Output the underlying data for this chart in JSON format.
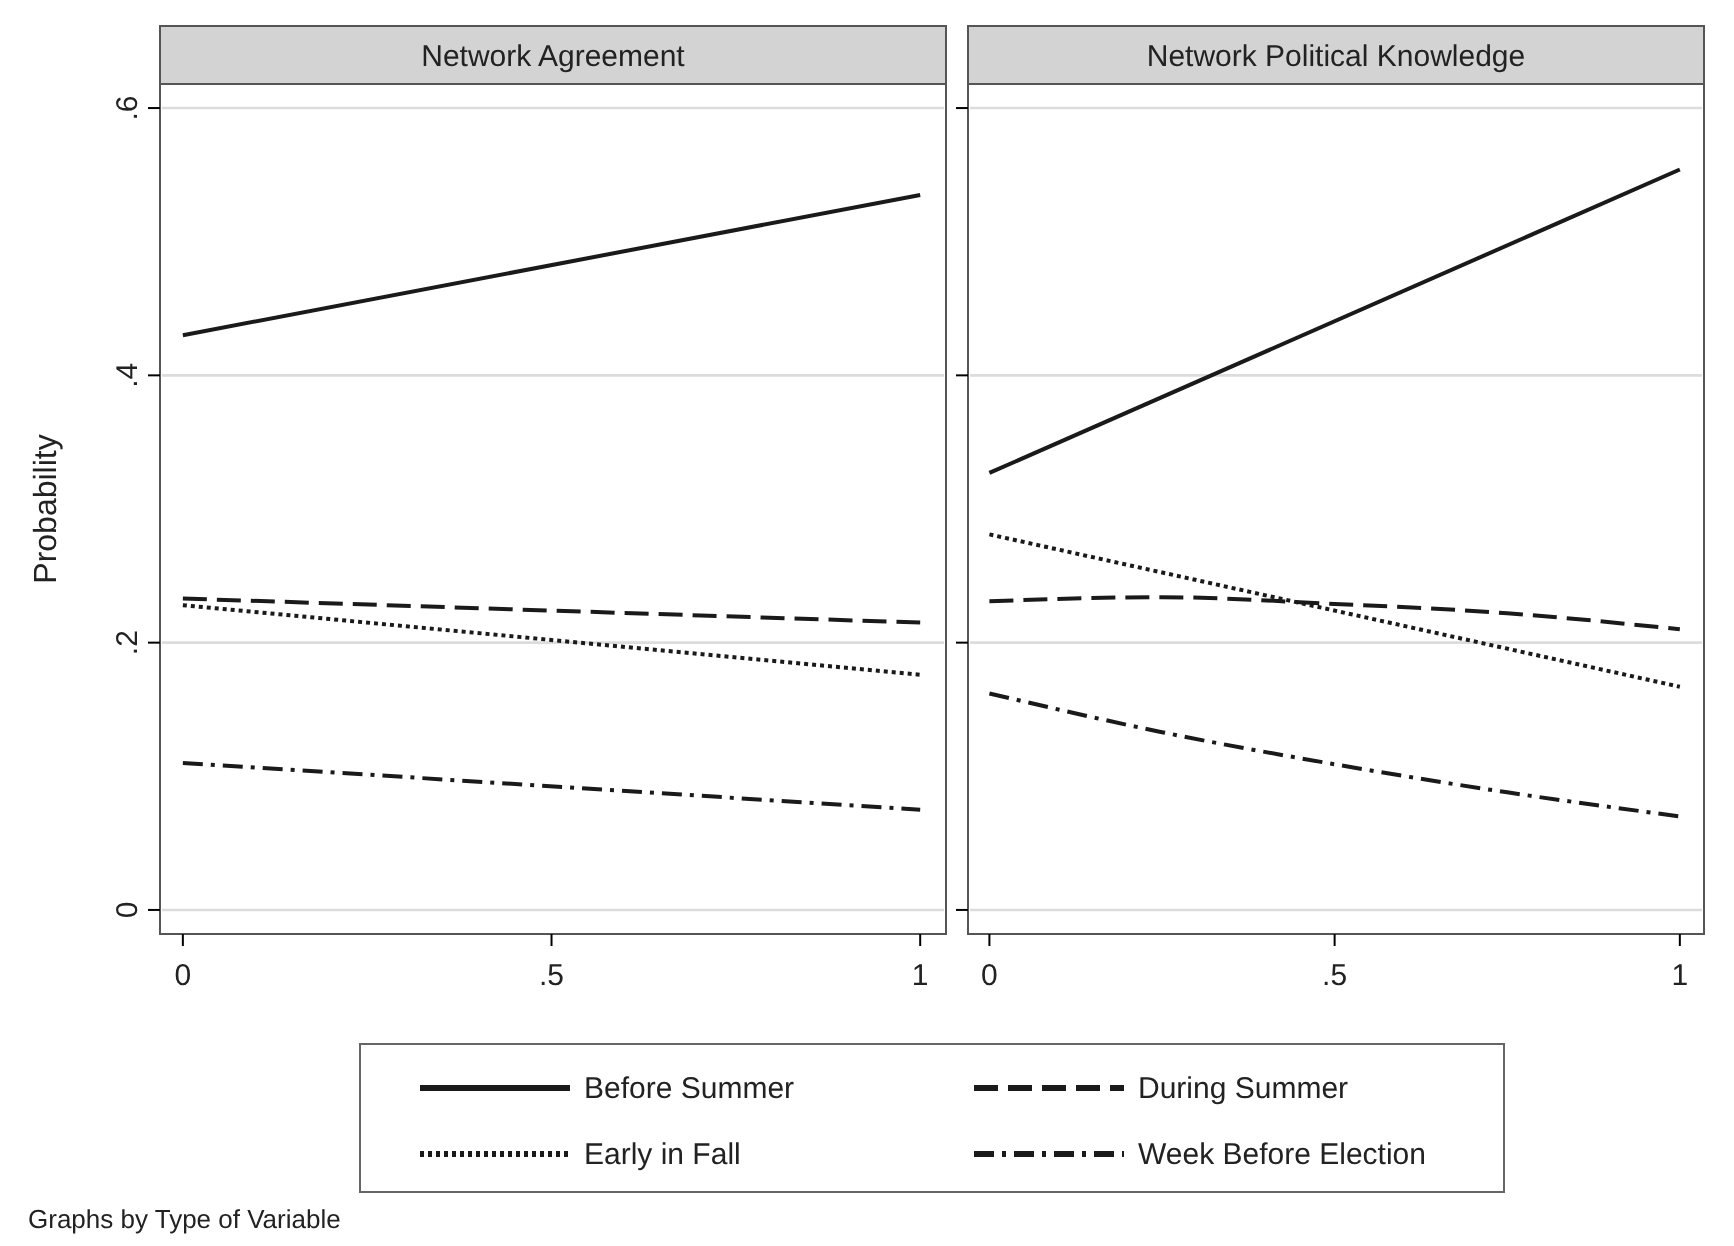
{
  "chart_data": [
    {
      "type": "line",
      "title": "Network Agreement",
      "ylabel": "Probability",
      "xlim": [
        -0.031,
        1.035
      ],
      "ylim": [
        -0.018,
        0.618
      ],
      "xticks": [
        {
          "value": 0,
          "label": "0"
        },
        {
          "value": 0.5,
          "label": ".5"
        },
        {
          "value": 1,
          "label": "1"
        }
      ],
      "yticks": [
        {
          "value": 0,
          "label": "0"
        },
        {
          "value": 0.2,
          "label": ".2"
        },
        {
          "value": 0.4,
          "label": ".4"
        },
        {
          "value": 0.6,
          "label": ".6"
        }
      ],
      "grid": "y",
      "legend": "bottom",
      "annotations": [
        "Graphs by Type of Variable"
      ],
      "series": [
        {
          "name": "Before Summer",
          "color": "#1a1a1a",
          "line_style": "solid",
          "x": [
            0,
            1
          ],
          "values": [
            0.43,
            0.535
          ]
        },
        {
          "name": "During Summer",
          "color": "#1a1a1a",
          "line_style": "dashed",
          "x": [
            0,
            1
          ],
          "values": [
            0.233,
            0.215
          ]
        },
        {
          "name": "Early in Fall",
          "color": "#1a1a1a",
          "line_style": "dotted",
          "x": [
            0,
            1
          ],
          "values": [
            0.228,
            0.176
          ]
        },
        {
          "name": "Week Before Election",
          "color": "#1a1a1a",
          "line_style": "dashdot",
          "x": [
            0,
            1
          ],
          "values": [
            0.11,
            0.075
          ]
        }
      ]
    },
    {
      "type": "line",
      "title": "Network Political Knowledge",
      "xlim": [
        -0.031,
        1.035
      ],
      "ylim": [
        -0.018,
        0.618
      ],
      "xticks": [
        {
          "value": 0,
          "label": "0"
        },
        {
          "value": 0.5,
          "label": ".5"
        },
        {
          "value": 1,
          "label": "1"
        }
      ],
      "yticks": [
        {
          "value": 0,
          "label": null
        },
        {
          "value": 0.2,
          "label": null
        },
        {
          "value": 0.4,
          "label": null
        },
        {
          "value": 0.6,
          "label": null
        }
      ],
      "grid": "y",
      "tick_labels": "x",
      "series": [
        {
          "color": "#1a1a1a",
          "line_style": "solid",
          "x": [
            0,
            1
          ],
          "values": [
            0.327,
            0.554
          ]
        },
        {
          "color": "#1a1a1a",
          "line_style": "dashed",
          "x": [
            0,
            0.25,
            0.5,
            0.75,
            1
          ],
          "values": [
            0.231,
            0.234,
            0.229,
            0.222,
            0.21
          ]
        },
        {
          "color": "#1a1a1a",
          "line_style": "dotted",
          "x": [
            0,
            1
          ],
          "values": [
            0.281,
            0.167
          ]
        },
        {
          "color": "#1a1a1a",
          "line_style": "dashdot",
          "x": [
            0,
            0.25,
            0.5,
            0.75,
            1
          ],
          "values": [
            0.162,
            0.133,
            0.109,
            0.088,
            0.07
          ]
        }
      ]
    }
  ]
}
